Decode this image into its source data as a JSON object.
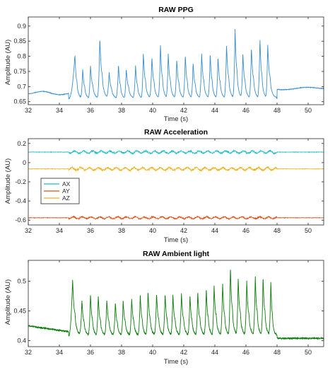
{
  "chart_data": [
    {
      "type": "line",
      "title": "RAW PPG",
      "xlabel": "Time (s)",
      "ylabel": "Amplitude (AU)",
      "xlim": [
        32,
        51
      ],
      "ylim": [
        0.64,
        0.93
      ],
      "xticks": [
        32,
        34,
        36,
        38,
        40,
        42,
        44,
        46,
        48,
        50
      ],
      "yticks": [
        0.65,
        0.7,
        0.75,
        0.8,
        0.85,
        0.9
      ],
      "ytick_labels": [
        "0.65",
        "0.7",
        "0.75",
        "0.8",
        "0.85",
        "0.9"
      ],
      "series": [
        {
          "color": "#3a8fd0",
          "baseline_before": 0.68,
          "baseline_after": 0.692,
          "active_start": 34.6,
          "active_end": 48.0,
          "trough": 0.66,
          "beats_t": [
            35.0,
            35.5,
            36.0,
            36.6,
            37.2,
            37.8,
            38.3,
            38.9,
            39.4,
            39.95,
            40.5,
            41.0,
            41.55,
            42.1,
            42.6,
            43.15,
            43.7,
            44.2,
            44.75,
            45.3,
            45.8,
            46.35,
            46.9,
            47.4
          ],
          "beats_peak": [
            0.805,
            0.76,
            0.77,
            0.862,
            0.748,
            0.773,
            0.76,
            0.77,
            0.812,
            0.8,
            0.84,
            0.81,
            0.79,
            0.806,
            0.78,
            0.81,
            0.81,
            0.8,
            0.84,
            0.89,
            0.81,
            0.83,
            0.86,
            0.84
          ]
        }
      ]
    },
    {
      "type": "line",
      "title": "RAW Acceleration",
      "xlabel": "Time (s)",
      "ylabel": "Amplitude (AU)",
      "xlim": [
        32,
        51
      ],
      "ylim": [
        -0.65,
        0.25
      ],
      "xticks": [
        32,
        34,
        36,
        38,
        40,
        42,
        44,
        46,
        48,
        50
      ],
      "yticks": [
        -0.6,
        -0.4,
        -0.2,
        0,
        0.2
      ],
      "ytick_labels": [
        "-0.6",
        "-0.4",
        "-0.2",
        "0",
        "0.2"
      ],
      "legend": {
        "position": "upper-left",
        "entries": [
          "AX",
          "AY",
          "AZ"
        ]
      },
      "active_start": 34.6,
      "active_end": 48.0,
      "series": [
        {
          "name": "AX",
          "color": "#1fbdc6",
          "mean": 0.11,
          "noise_quiet": 0.004,
          "noise_active": 0.014
        },
        {
          "name": "AY",
          "color": "#d95319",
          "mean": -0.575,
          "noise_quiet": 0.004,
          "noise_active": 0.012
        },
        {
          "name": "AZ",
          "color": "#edb120",
          "mean": -0.065,
          "noise_quiet": 0.004,
          "noise_active": 0.016
        }
      ]
    },
    {
      "type": "line",
      "title": "RAW Ambient light",
      "xlabel": "Time (s)",
      "ylabel": "Amplitude (AU)",
      "xlim": [
        32,
        51
      ],
      "ylim": [
        0.39,
        0.535
      ],
      "xticks": [
        32,
        34,
        36,
        38,
        40,
        42,
        44,
        46,
        48,
        50
      ],
      "yticks": [
        0.4,
        0.45,
        0.5
      ],
      "ytick_labels": [
        "0.4",
        "0.45",
        "0.5"
      ],
      "series": [
        {
          "color": "#0a7d0a",
          "baseline_before_start": 0.425,
          "baseline_before_end": 0.415,
          "baseline_after": 0.404,
          "active_start": 34.6,
          "active_end": 48.0,
          "trough": 0.408,
          "beats_t": [
            34.85,
            35.45,
            36.0,
            36.5,
            37.05,
            37.6,
            38.1,
            38.65,
            39.2,
            39.7,
            40.25,
            40.8,
            41.3,
            41.85,
            42.4,
            42.9,
            43.45,
            43.95,
            44.5,
            45.0,
            45.5,
            46.05,
            46.6,
            47.1,
            47.6
          ],
          "beats_peak": [
            0.503,
            0.468,
            0.478,
            0.475,
            0.47,
            0.465,
            0.468,
            0.47,
            0.478,
            0.483,
            0.48,
            0.48,
            0.478,
            0.48,
            0.477,
            0.482,
            0.487,
            0.493,
            0.497,
            0.525,
            0.505,
            0.5,
            0.508,
            0.508,
            0.5
          ]
        }
      ]
    }
  ]
}
